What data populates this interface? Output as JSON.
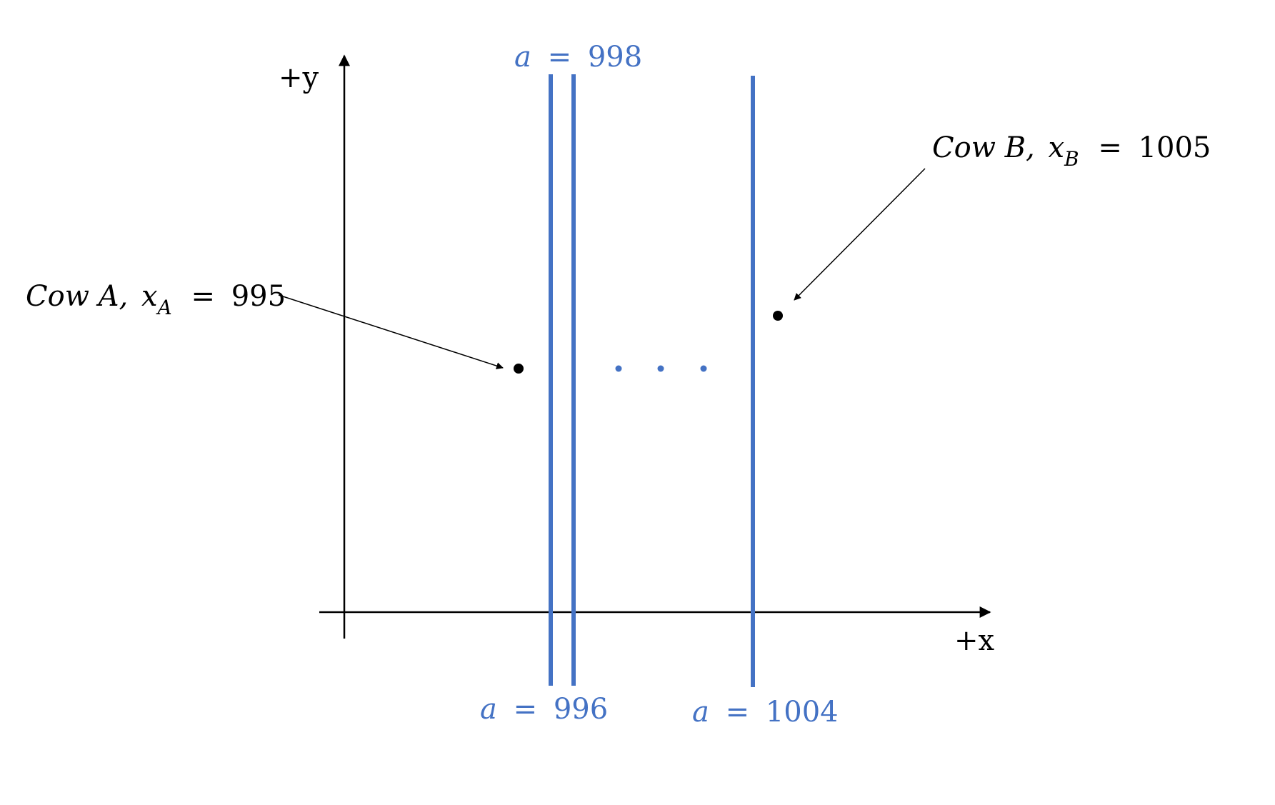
{
  "axes": {
    "x_label": "+x",
    "y_label": "+y"
  },
  "cow_a": {
    "name": "Cow A,",
    "var": "x",
    "subscript": "A",
    "equals": "=",
    "value": "995",
    "x": 995
  },
  "cow_b": {
    "name": "Cow B,",
    "var": "x",
    "subscript": "B",
    "equals": "=",
    "value": "1005",
    "x": 1005
  },
  "lines": [
    {
      "var": "a",
      "equals": "=",
      "value": "996",
      "x": 996
    },
    {
      "var": "a",
      "equals": "=",
      "value": "998",
      "x": 998
    },
    {
      "var": "a",
      "equals": "=",
      "value": "1004",
      "x": 1004
    }
  ],
  "ellipsis_glyph": "…",
  "colors": {
    "axis": "#000000",
    "line": "#4472C4",
    "text": "#000000",
    "line_text": "#4472C4"
  }
}
